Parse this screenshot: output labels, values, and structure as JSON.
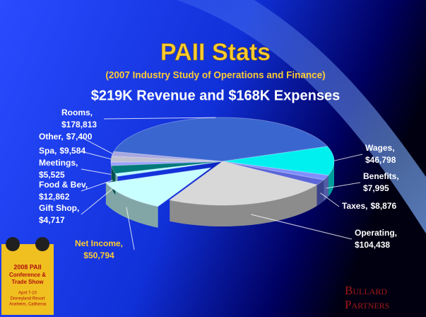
{
  "chart_data": {
    "type": "pie",
    "title": "PAII Stats",
    "subtitle": "(2007 Industry Study of Operations and Finance)",
    "heading": "$219K Revenue and $168K Expenses",
    "categories": [
      "Wages,",
      "Benefits,",
      "Taxes,",
      "Operating,",
      "Net Income,",
      "Gift Shop,",
      "Food & Bev,",
      "Meetings,",
      "Spa,",
      "Other,",
      "Rooms,"
    ],
    "values": [
      46798,
      7995,
      8876,
      104438,
      50794,
      4717,
      12862,
      5525,
      9584,
      7400,
      178813
    ],
    "value_labels": [
      "$46,798",
      "$7,995",
      "$8,876",
      "$104,438",
      "$50,794",
      "$4,717",
      "$12,862",
      "$5,525",
      "$9,584",
      "$7,400",
      "$178,813"
    ],
    "colors": [
      "#00f0f0",
      "#7f8fff",
      "#5a66d8",
      "#d8d8d8",
      "#c8ffff",
      "#b8ffff",
      "#007a7a",
      "#9aa0ff",
      "#c0c0d0",
      "#a8a8e0",
      "#3a66d0"
    ]
  },
  "logos": {
    "show": [
      "2008 PAII",
      "Conference &",
      "Trade Show"
    ],
    "details": [
      "April 7-10",
      "Disneyland Resort",
      "Anaheim, California"
    ],
    "company": [
      "Bullard",
      "Partners"
    ]
  }
}
